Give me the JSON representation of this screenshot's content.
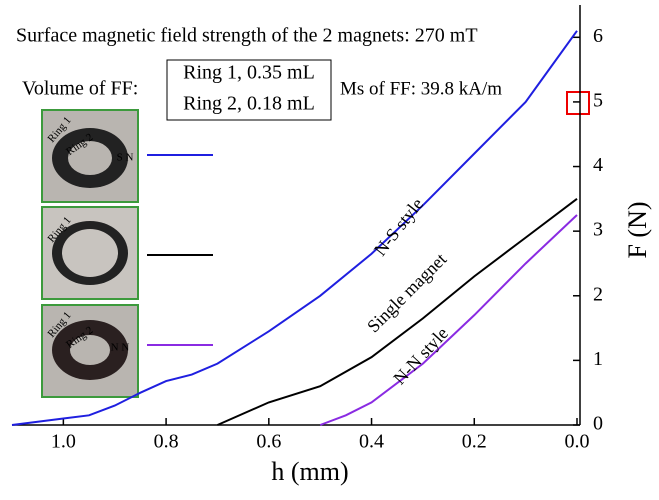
{
  "chart_data": {
    "type": "line",
    "annotations": [
      "Surface magnetic field strength of the 2 magnets: 270 mT",
      "Volume of FF:",
      "Ring 1, 0.35 mL",
      "Ring 2, 0.18 mL",
      "Ms of FF: 39.8 kA/m"
    ],
    "photo_labels": [
      "Ring 1",
      "Ring 2",
      "S N",
      "Ring 1",
      "Ring 1",
      "Ring 2",
      "N N"
    ],
    "x_label": "h (mm)",
    "y_label": "F (N)",
    "xlim": [
      1.1,
      0
    ],
    "xticks": [
      {
        "value": 1.0,
        "label": "1.0"
      },
      0.8,
      0.6,
      0.4,
      0.2,
      {
        "value": 0.0,
        "label": "0.0"
      }
    ],
    "ylim": [
      0,
      6.5
    ],
    "yticks": [
      0,
      1,
      2,
      3,
      4,
      5,
      6
    ],
    "series": [
      {
        "name": "N-S style",
        "color": "#1f1fe0",
        "x": [
          1.1,
          1.0,
          0.95,
          0.9,
          0.85,
          0.8,
          0.75,
          0.7,
          0.6,
          0.5,
          0.4,
          0.3,
          0.2,
          0.1,
          0.05,
          0.0
        ],
        "values": [
          0,
          0.1,
          0.15,
          0.3,
          0.5,
          0.68,
          0.78,
          0.95,
          1.45,
          2.0,
          2.65,
          3.4,
          4.2,
          5.0,
          5.55,
          6.1
        ]
      },
      {
        "name": "Single magnet",
        "color": "#000000",
        "x": [
          0.7,
          0.6,
          0.5,
          0.4,
          0.3,
          0.2,
          0.1,
          0.0
        ],
        "values": [
          0,
          0.35,
          0.6,
          1.05,
          1.65,
          2.3,
          2.9,
          3.5
        ]
      },
      {
        "name": "N-N style",
        "color": "#8a2be2",
        "x": [
          0.5,
          0.45,
          0.4,
          0.3,
          0.2,
          0.1,
          0.0
        ],
        "values": [
          0,
          0.15,
          0.35,
          0.95,
          1.7,
          2.5,
          3.25
        ]
      }
    ]
  }
}
